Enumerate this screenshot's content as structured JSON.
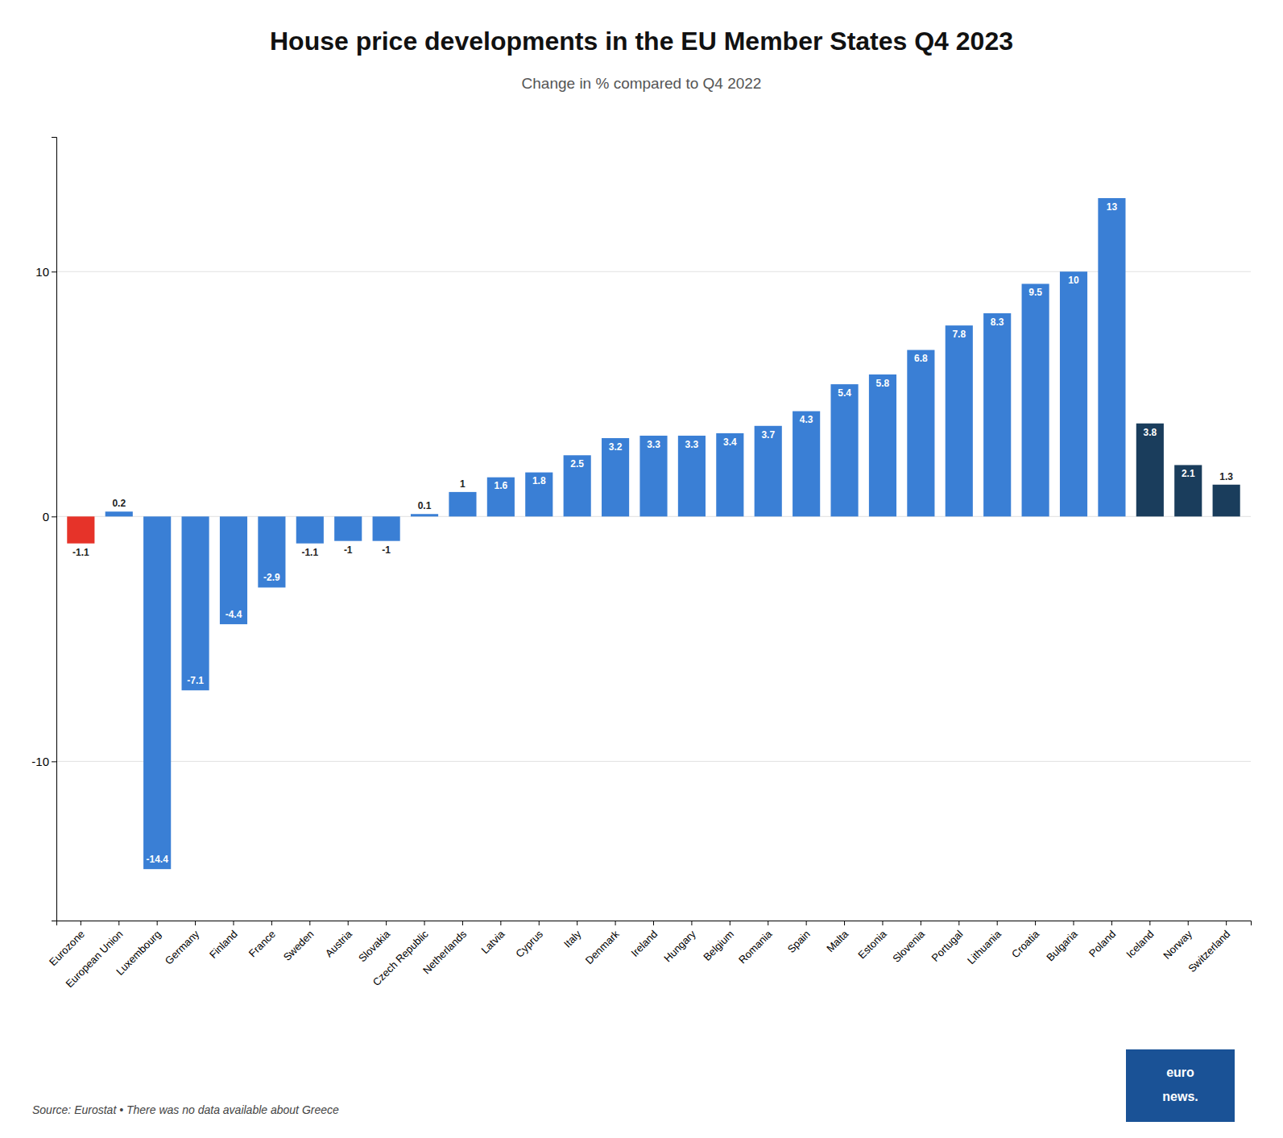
{
  "chart_data": {
    "type": "bar",
    "title": "House price developments in the EU Member States Q4 2023",
    "subtitle": "Change in % compared to Q4 2022",
    "source": "Source: Eurostat • There was no data available about Greece",
    "annotations": [
      "euro",
      "news."
    ],
    "categories": [
      "Eurozone",
      "European Union",
      "Luxembourg",
      "Germany",
      "Finland",
      "France",
      "Sweden",
      "Austria",
      "Slovakia",
      "Czech Republic",
      "Netherlands",
      "Latvia",
      "Cyprus",
      "Italy",
      "Denmark",
      "Ireland",
      "Hungary",
      "Belgium",
      "Romania",
      "Spain",
      "Malta",
      "Estonia",
      "Slovenia",
      "Portugal",
      "Lithuania",
      "Croatia",
      "Bulgaria",
      "Poland",
      "Iceland",
      "Norway",
      "Switzerland"
    ],
    "values": [
      -1.1,
      0.2,
      -14.4,
      -7.1,
      -4.4,
      -2.9,
      -1.1,
      -1.0,
      -1.0,
      0.1,
      1.0,
      1.6,
      1.8,
      2.5,
      3.2,
      3.3,
      3.3,
      3.4,
      3.7,
      4.3,
      5.4,
      5.8,
      6.8,
      7.8,
      8.3,
      9.5,
      10.0,
      13.0,
      3.8,
      2.1,
      1.3
    ],
    "colors": [
      "#e63329",
      "#3a7fd5",
      "#3a7fd5",
      "#3a7fd5",
      "#3a7fd5",
      "#3a7fd5",
      "#3a7fd5",
      "#3a7fd5",
      "#3a7fd5",
      "#3a7fd5",
      "#3a7fd5",
      "#3a7fd5",
      "#3a7fd5",
      "#3a7fd5",
      "#3a7fd5",
      "#3a7fd5",
      "#3a7fd5",
      "#3a7fd5",
      "#3a7fd5",
      "#3a7fd5",
      "#3a7fd5",
      "#3a7fd5",
      "#3a7fd5",
      "#3a7fd5",
      "#3a7fd5",
      "#3a7fd5",
      "#3a7fd5",
      "#3a7fd5",
      "#1a3d5c",
      "#1a3d5c",
      "#1a3d5c"
    ],
    "ylim": [
      -16.5,
      15.5
    ],
    "yticks": [
      -10,
      0,
      10
    ],
    "grid": true,
    "data_labels": true
  }
}
